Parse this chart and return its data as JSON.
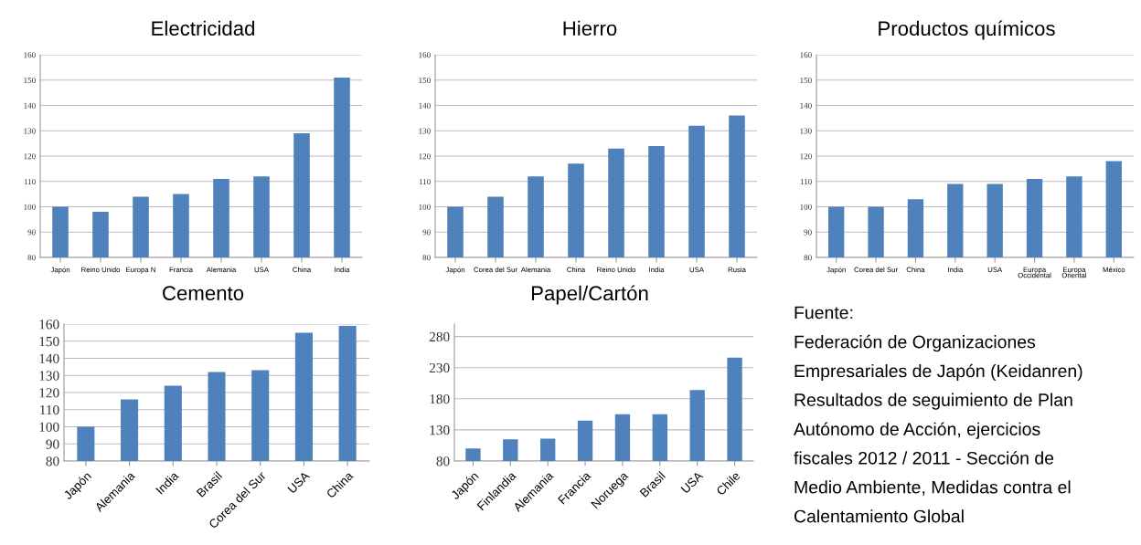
{
  "chart_data": [
    {
      "type": "bar",
      "title": "Electricidad",
      "categories": [
        "Japón",
        "Reino Unido",
        "Europa N",
        "Francia",
        "Alemania",
        "USA",
        "China",
        "India"
      ],
      "values": [
        100,
        98,
        104,
        105,
        111,
        112,
        129,
        151
      ],
      "color": "#4f81bd",
      "ylim": [
        80,
        160
      ],
      "yticks": [
        80,
        90,
        100,
        110,
        120,
        130,
        140,
        150,
        160
      ],
      "grid": "y"
    },
    {
      "type": "bar",
      "title": "Hierro",
      "categories": [
        "Japón",
        "Corea del Sur",
        "Alemania",
        "China",
        "Reino Unido",
        "India",
        "USA",
        "Rusia"
      ],
      "values": [
        100,
        104,
        112,
        117,
        123,
        124,
        132,
        136
      ],
      "color": "#4f81bd",
      "ylim": [
        80,
        160
      ],
      "yticks": [
        80,
        90,
        100,
        110,
        120,
        130,
        140,
        150,
        160
      ],
      "grid": "y"
    },
    {
      "type": "bar",
      "title": "Productos químicos",
      "categories": [
        "Japón",
        "Corea del Sur",
        "China",
        "India",
        "USA",
        "Europa\nOccidental",
        "Europa\nOriental",
        "México"
      ],
      "values": [
        100,
        100,
        103,
        109,
        109,
        111,
        112,
        118
      ],
      "color": "#4f81bd",
      "ylim": [
        80,
        160
      ],
      "yticks": [
        80,
        90,
        100,
        110,
        120,
        130,
        140,
        150,
        160
      ],
      "grid": "y"
    },
    {
      "type": "bar",
      "title": "Cemento",
      "categories": [
        "Japón",
        "Alemania",
        "India",
        "Brasil",
        "Corea del Sur",
        "USA",
        "China"
      ],
      "values": [
        100,
        116,
        124,
        132,
        133,
        155,
        159
      ],
      "color": "#4f81bd",
      "ylim": [
        80,
        160
      ],
      "yticks": [
        80,
        90,
        100,
        110,
        120,
        130,
        140,
        150,
        160
      ],
      "grid": "y"
    },
    {
      "type": "bar",
      "title": "Papel/Cartón",
      "categories": [
        "Japón",
        "Finlandia",
        "Alemania",
        "Francia",
        "Noruega",
        "Brasil",
        "USA",
        "Chile"
      ],
      "values": [
        100,
        115,
        116,
        145,
        155,
        155,
        194,
        246
      ],
      "color": "#4f81bd",
      "ylim": [
        80,
        300
      ],
      "yticks": [
        80,
        130,
        180,
        230,
        280
      ],
      "grid": "y"
    },
    {
      "type": "other",
      "annotations": [
        "Fuente:",
        "Federación de Organizaciones",
        "Empresariales de Japón (Keidanren)",
        "Resultados de seguimiento de Plan",
        "Autónomo de Acción, ejercicios",
        "fiscales 2012 / 2011 - Sección de",
        "Medio Ambiente, Medidas contra el",
        "Calentamiento Global"
      ]
    }
  ]
}
